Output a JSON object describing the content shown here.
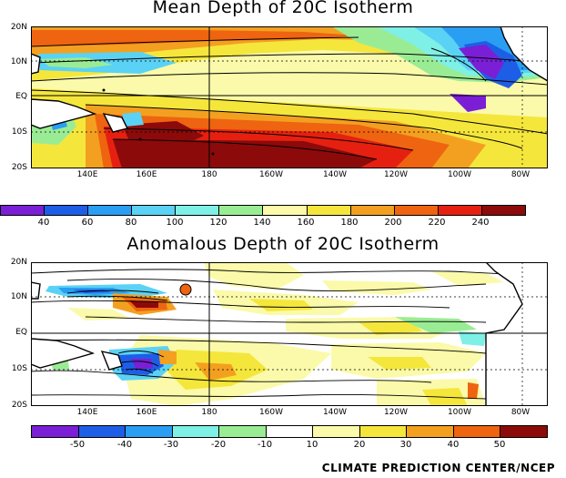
{
  "panels": [
    {
      "title": "Mean Depth of 20C Isotherm",
      "lat_labels": [
        "20N",
        "10N",
        "EQ",
        "10S",
        "20S"
      ],
      "lon_labels": [
        "140E",
        "160E",
        "180",
        "160W",
        "140W",
        "120W",
        "100W",
        "80W"
      ],
      "colorbar_labels": [
        "40",
        "60",
        "80",
        "100",
        "120",
        "140",
        "160",
        "180",
        "200",
        "220",
        "240"
      ],
      "colorbar_colors": [
        "#7a1fd6",
        "#1e5ee6",
        "#2a9ef2",
        "#5ad2f5",
        "#7ef0e6",
        "#9aec94",
        "#fafaaa",
        "#f5e63c",
        "#f3a020",
        "#ee6410",
        "#e62010",
        "#8c0a0a"
      ]
    },
    {
      "title": "Anomalous Depth of 20C Isotherm",
      "lat_labels": [
        "20N",
        "10N",
        "EQ",
        "10S",
        "20S"
      ],
      "lon_labels": [
        "140E",
        "160E",
        "180",
        "160W",
        "140W",
        "120W",
        "100W",
        "80W"
      ],
      "colorbar_labels": [
        "-50",
        "-40",
        "-30",
        "-20",
        "-10",
        "10",
        "20",
        "30",
        "40",
        "50"
      ],
      "colorbar_colors": [
        "#7a1fd6",
        "#1e5ee6",
        "#2a9ef2",
        "#7ef0e6",
        "#9aec94",
        "#ffffff",
        "#fafaaa",
        "#f5e63c",
        "#f3a020",
        "#ee6410",
        "#8c0a0a"
      ]
    }
  ],
  "credit": "CLIMATE PREDICTION CENTER/NCEP"
}
